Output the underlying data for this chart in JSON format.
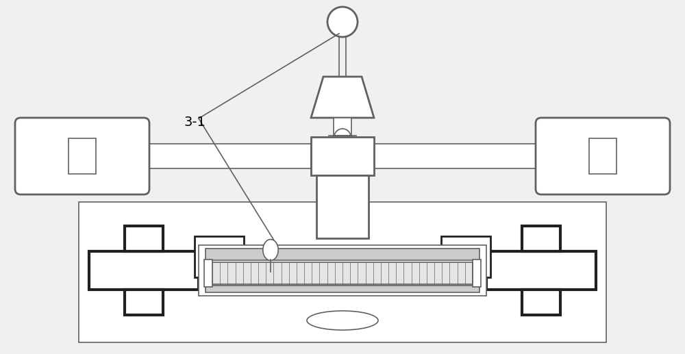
{
  "bg_color": "#ffffff",
  "line_color": "#606060",
  "dark_line": "#202020",
  "label_31": "3-1",
  "figsize": [
    10.0,
    5.17
  ],
  "dpi": 100
}
